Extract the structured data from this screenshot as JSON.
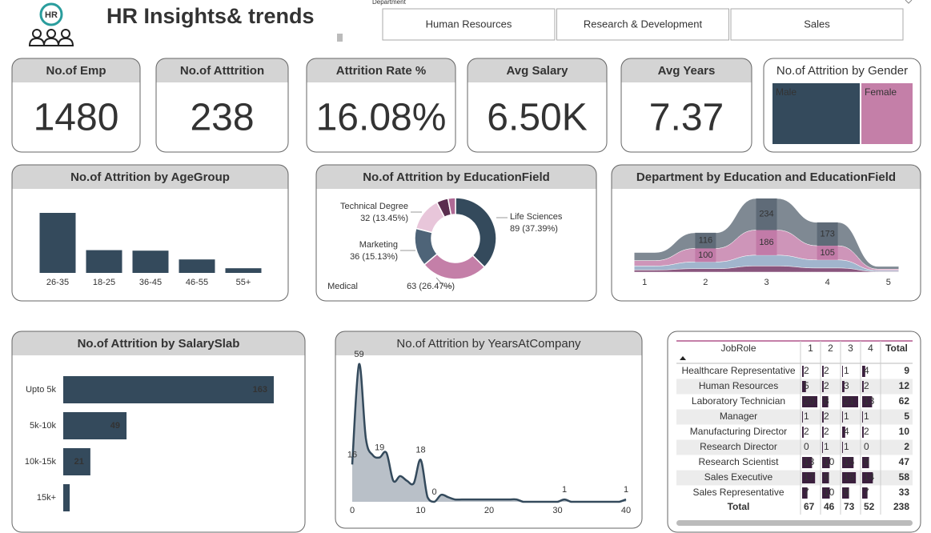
{
  "header": {
    "logo": "HR",
    "title": "HR Insights& trends"
  },
  "slicer": {
    "label": "Department",
    "options": [
      "Human Resources",
      "Research & Development",
      "Sales"
    ]
  },
  "kpis": [
    {
      "title": "No.of Emp",
      "value": "1480"
    },
    {
      "title": "No.of Atttrition",
      "value": "238"
    },
    {
      "title": "Attrition Rate %",
      "value": "16.08%"
    },
    {
      "title": "Avg Salary",
      "value": "6.50K"
    },
    {
      "title": "Avg Years",
      "value": "7.37"
    }
  ],
  "chart_data": [
    {
      "type": "treemap",
      "title": "No.of Attrition by Gender",
      "categories": [
        "Male",
        "Female"
      ],
      "values": [
        150,
        88
      ],
      "colors": [
        "#344a5c",
        "#c47fa8"
      ]
    },
    {
      "type": "bar",
      "title": "No.of Attrition by AgeGroup",
      "categories": [
        "26-35",
        "18-25",
        "36-45",
        "46-55",
        "55+"
      ],
      "values": [
        116,
        44,
        43,
        26,
        9
      ],
      "color": "#344a5c"
    },
    {
      "type": "donut",
      "title": "No.of Attrition by EducationField",
      "categories": [
        "Life Sciences",
        "Medical",
        "Marketing",
        "Technical Degree",
        null,
        null
      ],
      "values": [
        89,
        63,
        36,
        32,
        11,
        7
      ],
      "value_labels": [
        "89 (37.39%)",
        "63 (26.47%)",
        "36 (15.13%)",
        "32 (13.45%)",
        null,
        null
      ],
      "colors": [
        "#344a5c",
        "#c47fa8",
        "#4e6478",
        "#e8c6da",
        "#5a2d4e",
        "#b06a96"
      ]
    },
    {
      "type": "ribbon",
      "title": "Department by Education and EducationField",
      "x": [
        1,
        2,
        3,
        4,
        5
      ],
      "xlim": [
        0.8,
        5.2
      ],
      "xticks": [
        1,
        2,
        3,
        4,
        5
      ],
      "series": [
        {
          "color": "#5f6b78",
          "values": [
            60,
            116,
            234,
            173,
            20
          ]
        },
        {
          "color": "#c27ba8",
          "values": [
            40,
            100,
            186,
            105,
            10
          ]
        },
        {
          "color": "#8aa3c0",
          "values": [
            30,
            50,
            80,
            60,
            8
          ]
        },
        {
          "color": "#6b2a5c",
          "values": [
            15,
            25,
            45,
            30,
            4
          ]
        }
      ]
    },
    {
      "type": "hbar",
      "title": "No.of Attrition by SalarySlab",
      "categories": [
        "Upto 5k",
        "5k-10k",
        "10k-15k",
        "15k+"
      ],
      "values": [
        163,
        49,
        21,
        5
      ],
      "color": "#344a5c"
    },
    {
      "type": "area",
      "title": "No.of Attrition by YearsAtCompany",
      "x": [
        0,
        1,
        2,
        3,
        4,
        5,
        6,
        7,
        8,
        9,
        10,
        11,
        12,
        13,
        14,
        15,
        16,
        17,
        18,
        19,
        20,
        21,
        22,
        23,
        24,
        25,
        26,
        27,
        28,
        29,
        30,
        31,
        32,
        33,
        34,
        35,
        36,
        37,
        38,
        39,
        40
      ],
      "values": [
        16,
        59,
        27,
        20,
        19,
        21,
        9,
        11,
        9,
        8,
        18,
        2,
        0,
        3,
        2,
        1,
        1,
        1,
        1,
        1,
        1,
        1,
        1,
        1,
        1,
        0,
        0,
        0,
        0,
        0,
        0,
        1,
        0,
        0,
        0,
        0,
        0,
        0,
        0,
        0,
        1
      ],
      "value_labels": [
        "16",
        "59",
        null,
        null,
        "19",
        null,
        null,
        null,
        null,
        null,
        "18",
        null,
        "0",
        null,
        null,
        null,
        null,
        null,
        null,
        null,
        null,
        null,
        null,
        null,
        null,
        null,
        null,
        null,
        null,
        null,
        null,
        "1",
        null,
        null,
        null,
        null,
        null,
        null,
        null,
        null,
        "1"
      ],
      "xlim": [
        0,
        40
      ],
      "xticks": [
        0,
        10,
        20,
        30,
        40
      ],
      "color": "#344a5c",
      "fill": "#b9c0c8"
    }
  ],
  "table": {
    "columns": [
      "JobRole",
      "1",
      "2",
      "3",
      "4",
      "Total"
    ],
    "rows": [
      [
        "Healthcare Representative",
        2,
        2,
        1,
        4,
        9
      ],
      [
        "Human Resources",
        5,
        2,
        3,
        2,
        12
      ],
      [
        "Laboratory Technician",
        20,
        8,
        21,
        13,
        62
      ],
      [
        "Manager",
        1,
        2,
        1,
        1,
        5
      ],
      [
        "Manufacturing Director",
        2,
        2,
        4,
        2,
        10
      ],
      [
        "Research Director",
        0,
        1,
        1,
        0,
        2
      ],
      [
        "Research Scientist",
        13,
        10,
        15,
        9,
        47
      ],
      [
        "Sales Executive",
        17,
        9,
        18,
        14,
        58
      ],
      [
        "Sales Representative",
        7,
        10,
        9,
        7,
        33
      ]
    ],
    "total": [
      "Total",
      67,
      46,
      73,
      52,
      238
    ]
  }
}
